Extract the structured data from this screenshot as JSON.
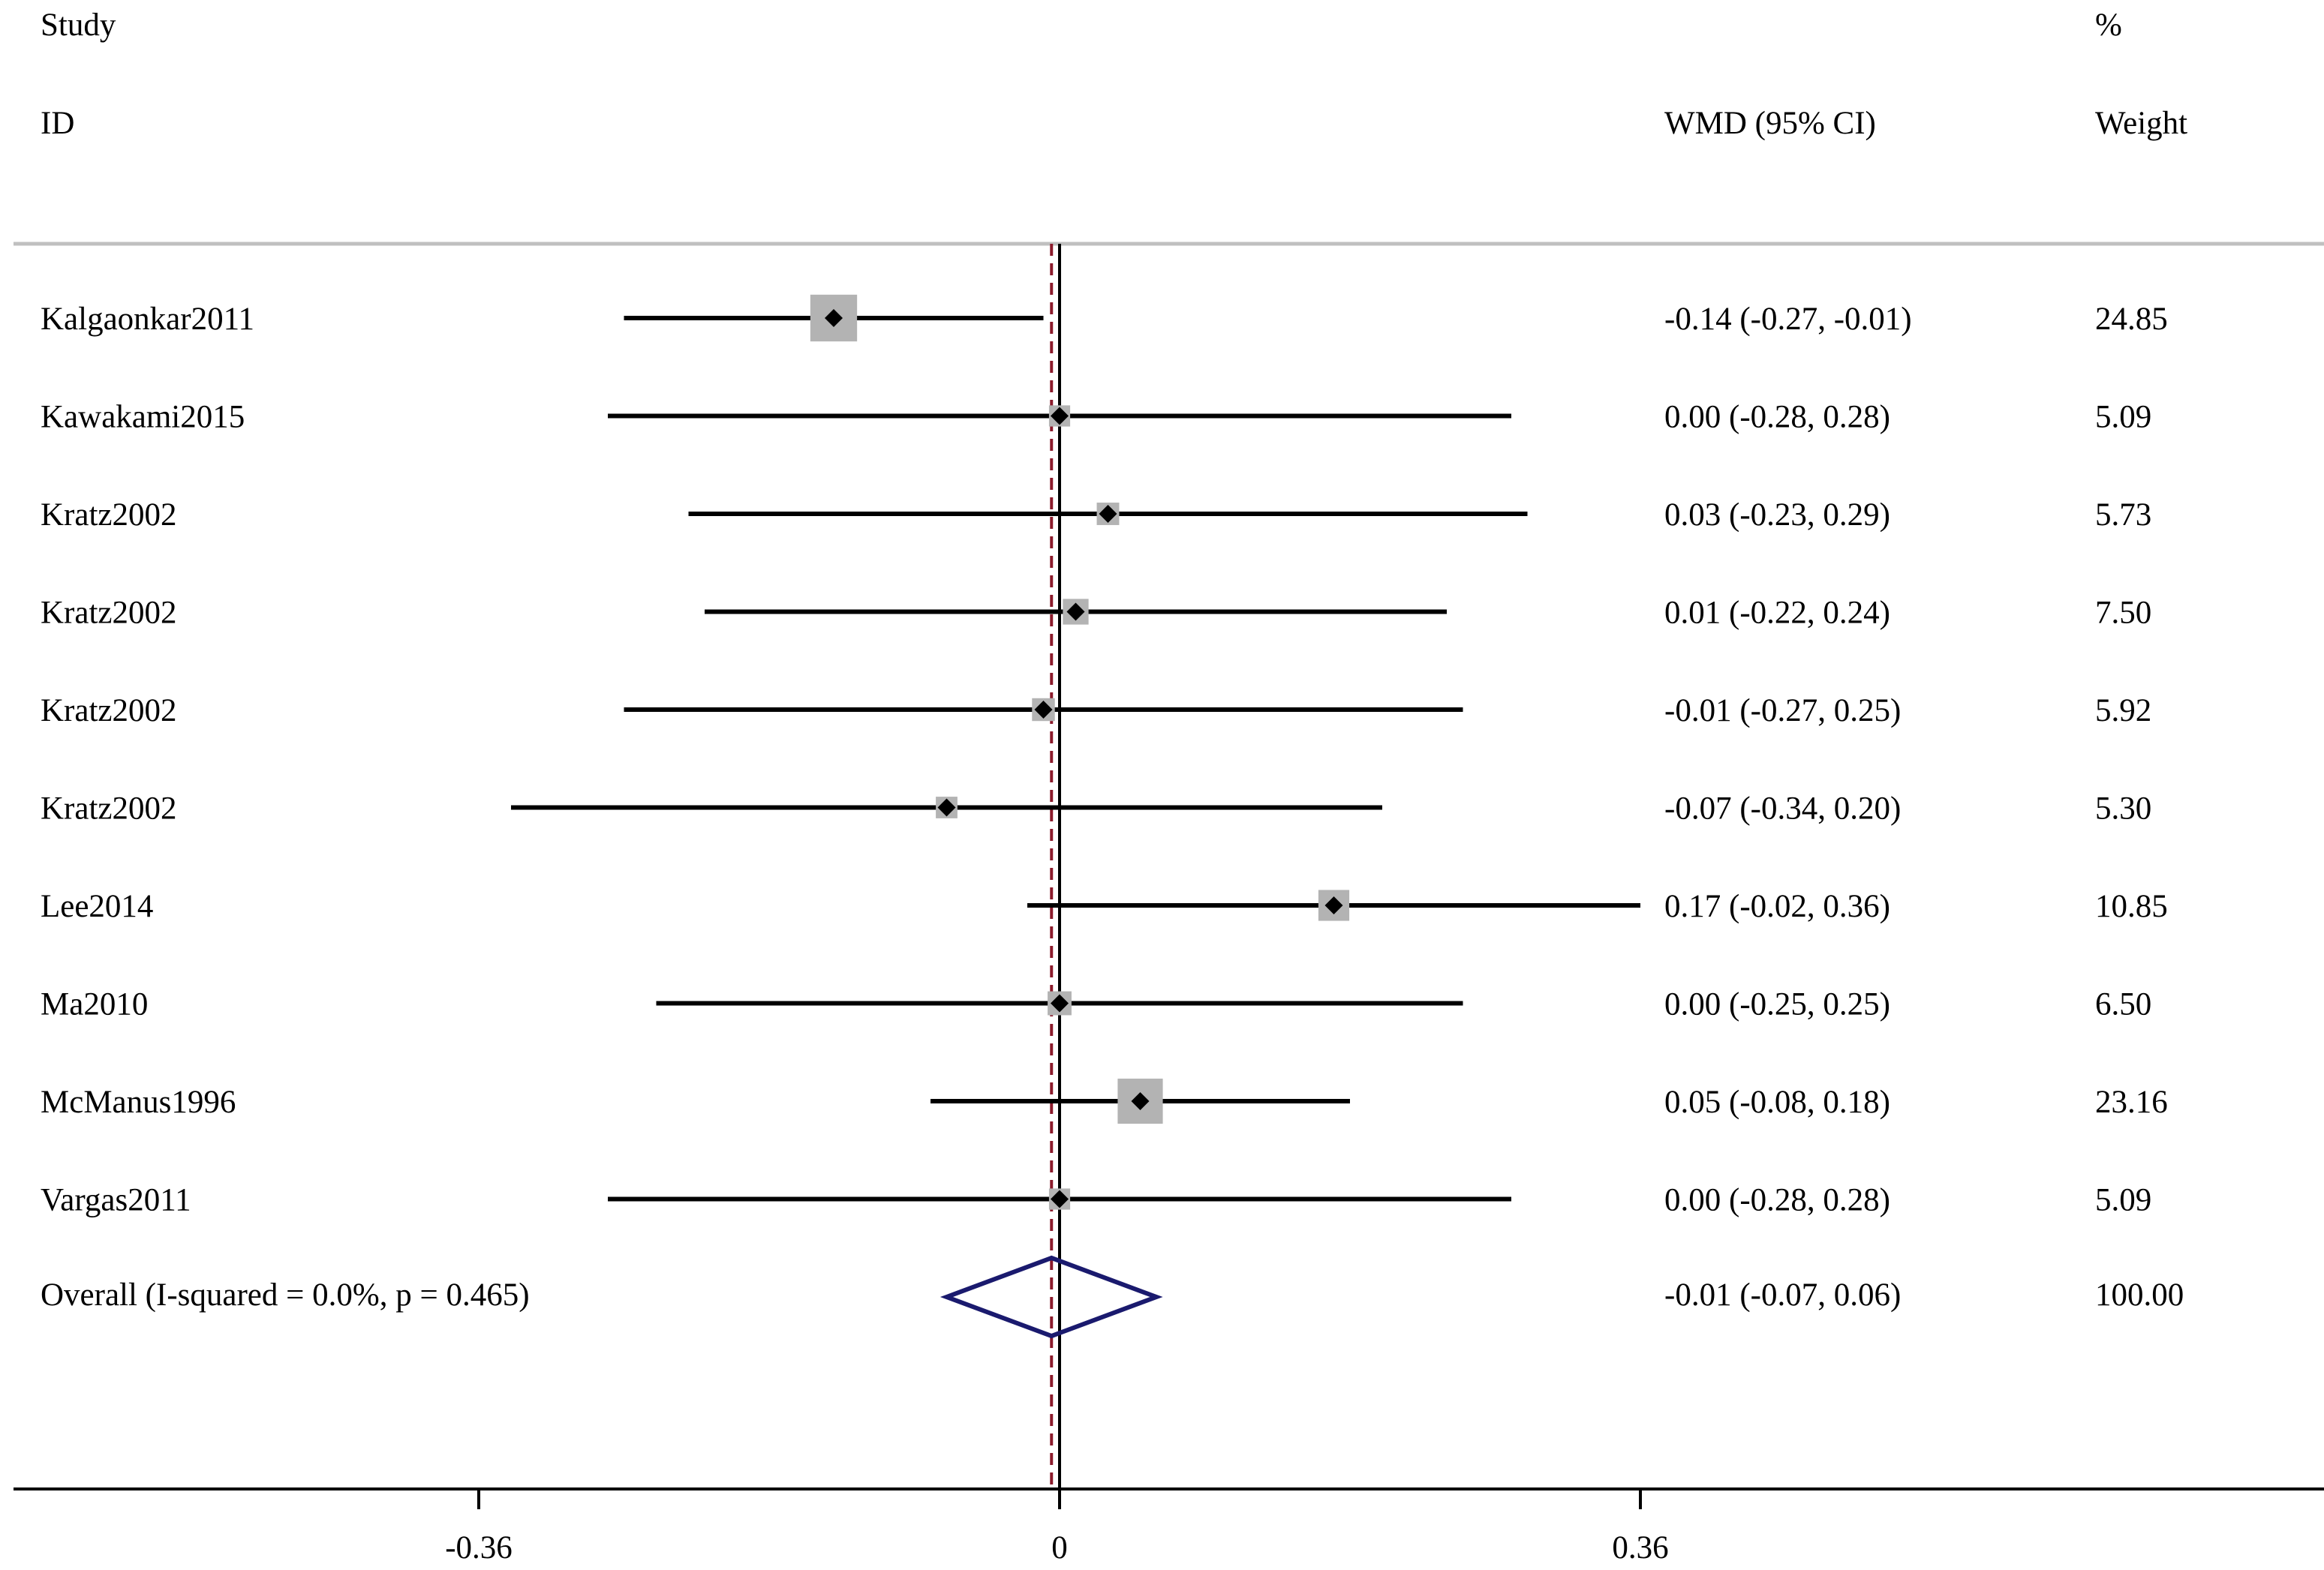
{
  "chart_data": {
    "type": "forest",
    "headers": {
      "study_line1": "Study",
      "study_line2": "ID",
      "effect": "WMD (95% CI)",
      "weight_line1": "%",
      "weight_line2": "Weight"
    },
    "studies": [
      {
        "name": "Kalgaonkar2011",
        "est": -0.14,
        "lo": -0.27,
        "hi": -0.01,
        "weight": 24.85,
        "ci_text": "-0.14 (-0.27, -0.01)",
        "weight_text": "24.85"
      },
      {
        "name": "Kawakami2015",
        "est": 0.0,
        "lo": -0.28,
        "hi": 0.28,
        "weight": 5.09,
        "ci_text": "0.00 (-0.28, 0.28)",
        "weight_text": "5.09"
      },
      {
        "name": "Kratz2002",
        "est": 0.03,
        "lo": -0.23,
        "hi": 0.29,
        "weight": 5.73,
        "ci_text": "0.03 (-0.23, 0.29)",
        "weight_text": "5.73"
      },
      {
        "name": "Kratz2002",
        "est": 0.01,
        "lo": -0.22,
        "hi": 0.24,
        "weight": 7.5,
        "ci_text": "0.01 (-0.22, 0.24)",
        "weight_text": "7.50"
      },
      {
        "name": "Kratz2002",
        "est": -0.01,
        "lo": -0.27,
        "hi": 0.25,
        "weight": 5.92,
        "ci_text": "-0.01 (-0.27, 0.25)",
        "weight_text": "5.92"
      },
      {
        "name": "Kratz2002",
        "est": -0.07,
        "lo": -0.34,
        "hi": 0.2,
        "weight": 5.3,
        "ci_text": "-0.07 (-0.34, 0.20)",
        "weight_text": "5.30"
      },
      {
        "name": "Lee2014",
        "est": 0.17,
        "lo": -0.02,
        "hi": 0.36,
        "weight": 10.85,
        "ci_text": "0.17 (-0.02, 0.36)",
        "weight_text": "10.85"
      },
      {
        "name": "Ma2010",
        "est": 0.0,
        "lo": -0.25,
        "hi": 0.25,
        "weight": 6.5,
        "ci_text": "0.00 (-0.25, 0.25)",
        "weight_text": "6.50"
      },
      {
        "name": "McManus1996",
        "est": 0.05,
        "lo": -0.08,
        "hi": 0.18,
        "weight": 23.16,
        "ci_text": "0.05 (-0.08, 0.18)",
        "weight_text": "23.16"
      },
      {
        "name": "Vargas2011",
        "est": 0.0,
        "lo": -0.28,
        "hi": 0.28,
        "weight": 5.09,
        "ci_text": "0.00 (-0.28, 0.28)",
        "weight_text": "5.09"
      }
    ],
    "overall": {
      "label": "Overall  (I-squared = 0.0%, p = 0.465)",
      "est": -0.005,
      "lo": -0.07,
      "hi": 0.06,
      "ci_text": "-0.01 (-0.07, 0.06)",
      "weight_text": "100.00"
    },
    "x_ticks": [
      {
        "value": -0.36,
        "label": "-0.36"
      },
      {
        "value": 0,
        "label": "0"
      },
      {
        "value": 0.36,
        "label": "0.36"
      }
    ],
    "null_line": 0,
    "colors": {
      "square": "#b3b3b3",
      "ci_line": "#000000",
      "overall_diamond": "#1a1a6e",
      "overall_line": "#8b1a2b",
      "divider": "#c0c0c0"
    }
  }
}
